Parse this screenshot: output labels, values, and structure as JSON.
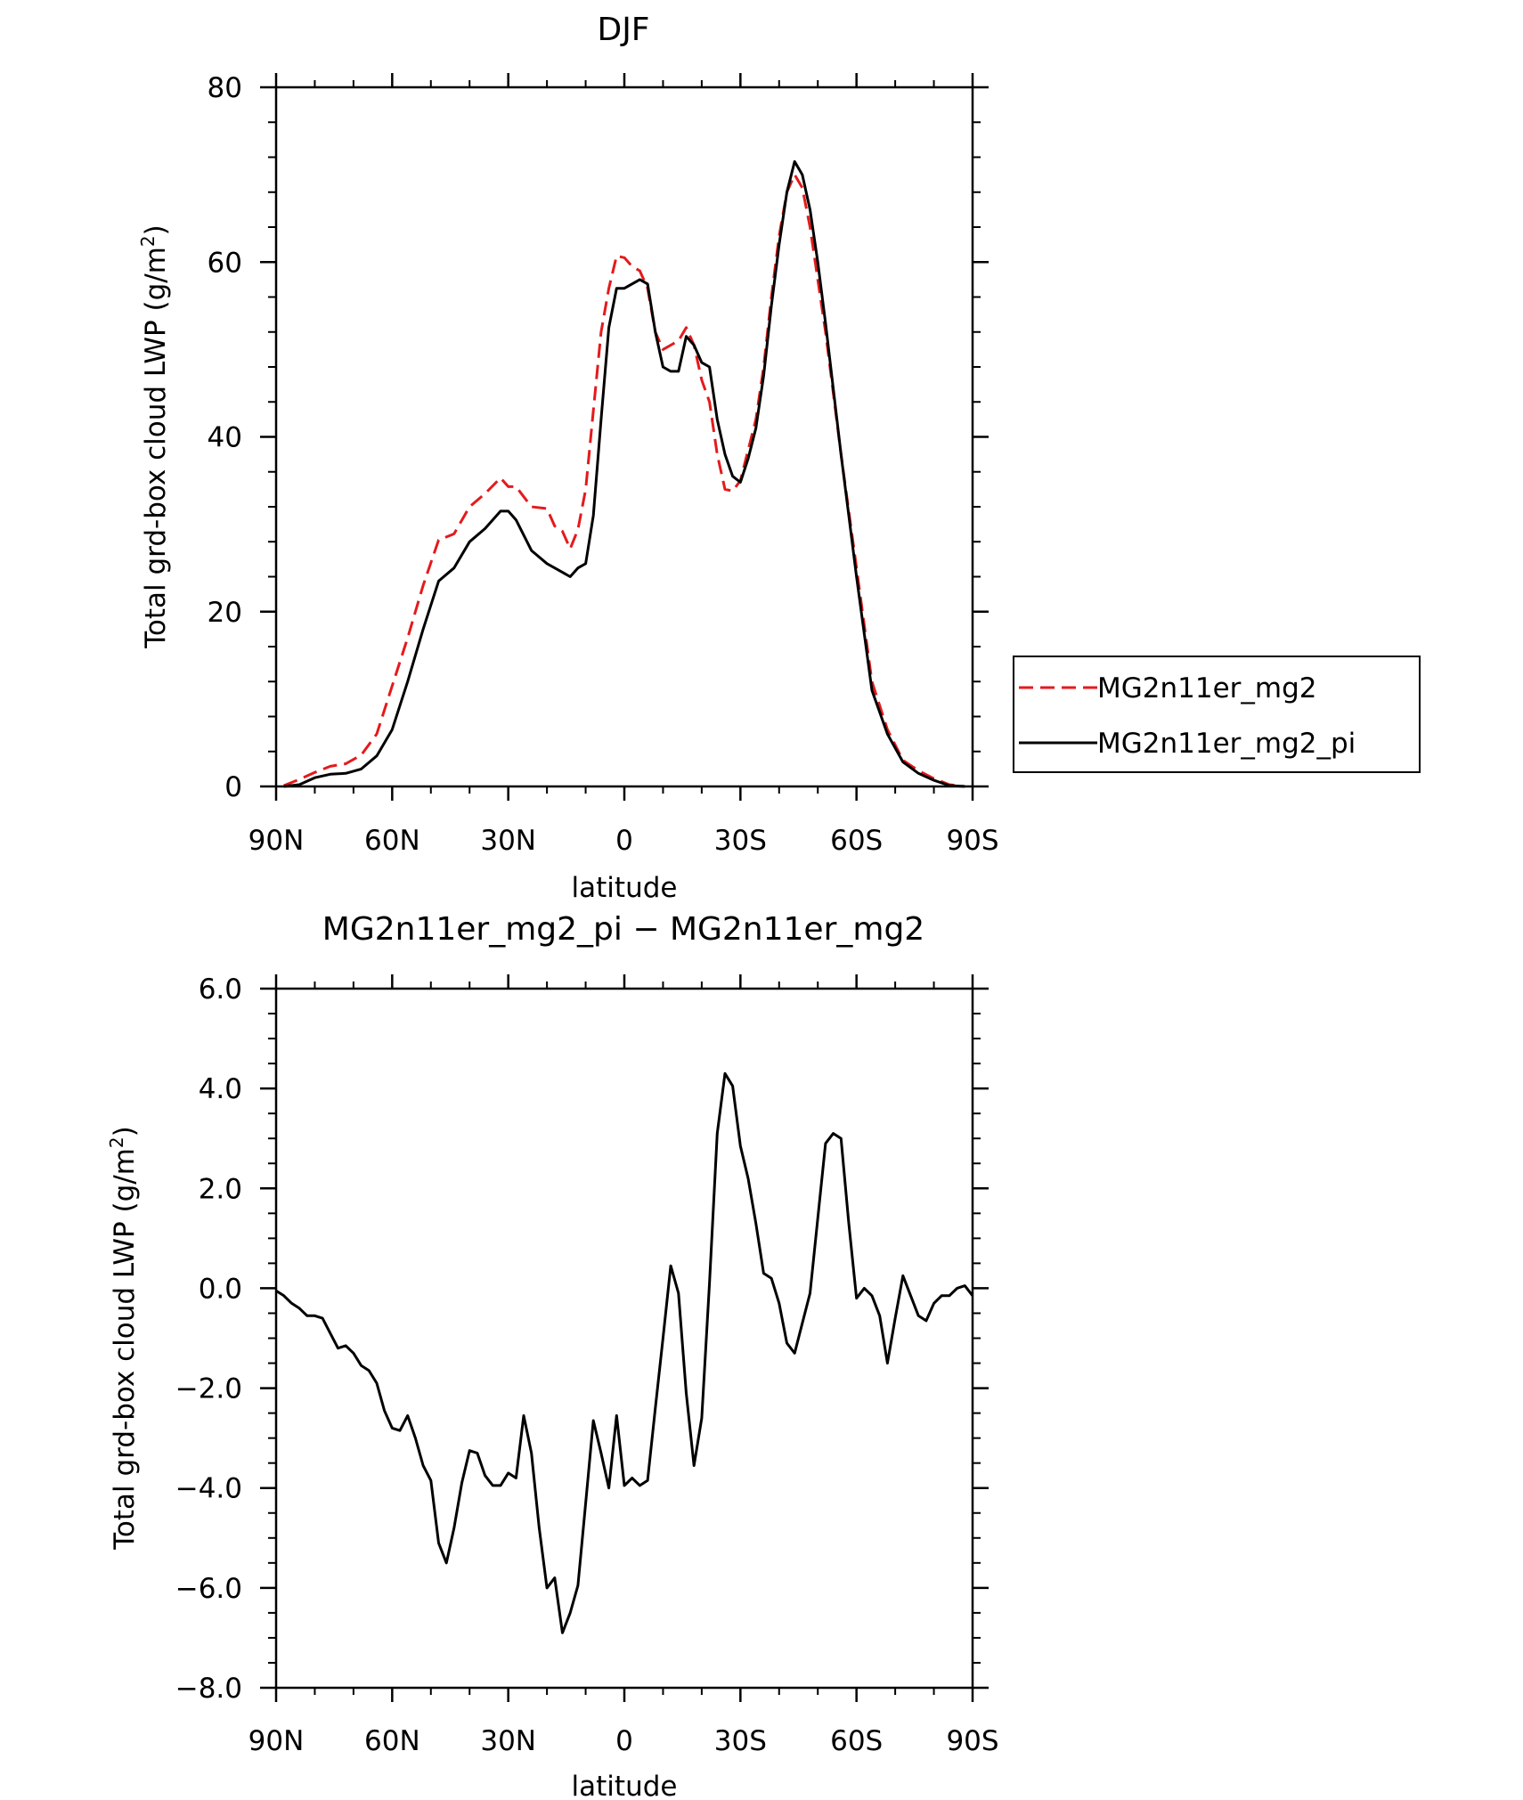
{
  "chart_data": [
    {
      "type": "line",
      "title": "DJF",
      "xlabel": "latitude",
      "ylabel": "Total grd-box cloud LWP (g/m²)",
      "ylabel_main": "Total grd-box cloud LWP (g/m",
      "ylabel_sup": "2",
      "ylabel_end": ")",
      "x_ticks": [
        "90N",
        "60N",
        "30N",
        "0",
        "30S",
        "60S",
        "90S"
      ],
      "x_tick_values": [
        -90,
        -60,
        -30,
        0,
        30,
        60,
        90
      ],
      "xlim": [
        -90,
        90
      ],
      "ylim": [
        0,
        80
      ],
      "y_ticks": [
        "0",
        "20",
        "40",
        "60",
        "80"
      ],
      "y_tick_values": [
        0,
        20,
        40,
        60,
        80
      ],
      "grid": false,
      "legend_position": "right",
      "x": [
        -88,
        -84,
        -80,
        -76,
        -72,
        -68,
        -64,
        -60,
        -56,
        -52,
        -48,
        -44,
        -40,
        -36,
        -32,
        -30,
        -28,
        -24,
        -20,
        -18,
        -16,
        -14,
        -12,
        -10,
        -8,
        -6,
        -4,
        -2,
        0,
        2,
        4,
        6,
        8,
        10,
        12,
        14,
        16,
        18,
        20,
        22,
        24,
        26,
        28,
        30,
        32,
        34,
        36,
        38,
        40,
        42,
        44,
        46,
        48,
        50,
        52,
        56,
        60,
        64,
        68,
        72,
        76,
        80,
        84,
        88
      ],
      "series": [
        {
          "name": "MG2n11er_mg2",
          "color": "#e41a1c",
          "dash": "dashed",
          "values": [
            0.1,
            0.8,
            1.6,
            2.3,
            2.6,
            3.6,
            6.0,
            11.5,
            17.0,
            23.0,
            28.2,
            28.9,
            32.0,
            33.5,
            35.3,
            34.3,
            34.3,
            32.0,
            31.8,
            29.8,
            29.2,
            27.2,
            29.4,
            34.0,
            43.0,
            52.0,
            57.0,
            60.7,
            60.5,
            59.5,
            59.0,
            57.0,
            52.0,
            50.0,
            50.5,
            51.0,
            52.5,
            50.5,
            46.5,
            44.0,
            38.0,
            34.0,
            33.8,
            35.0,
            38.5,
            42.0,
            48.0,
            56.0,
            63.0,
            68.0,
            70.0,
            68.5,
            64.0,
            58.0,
            52.0,
            38.0,
            25.0,
            12.0,
            6.5,
            3.0,
            1.8,
            0.9,
            0.2,
            0.0
          ]
        },
        {
          "name": "MG2n11er_mg2_pi",
          "color": "#000000",
          "dash": "solid",
          "values": [
            0.0,
            0.2,
            1.0,
            1.4,
            1.5,
            2.0,
            3.5,
            6.5,
            12.0,
            18.0,
            23.5,
            25.0,
            28.0,
            29.5,
            31.5,
            31.5,
            30.5,
            27.0,
            25.5,
            25.0,
            24.5,
            24.0,
            25.0,
            25.5,
            31.0,
            42.0,
            52.5,
            57.0,
            57.0,
            57.5,
            58.0,
            57.5,
            52.0,
            48.0,
            47.5,
            47.5,
            51.5,
            50.5,
            48.5,
            48.0,
            42.0,
            38.0,
            35.5,
            34.8,
            37.5,
            41.0,
            47.0,
            55.0,
            62.0,
            68.0,
            71.5,
            70.0,
            66.0,
            60.0,
            53.0,
            38.0,
            24.0,
            11.0,
            6.0,
            2.8,
            1.5,
            0.7,
            0.1,
            0.0
          ]
        }
      ]
    },
    {
      "type": "line",
      "title": "MG2n11er_mg2_pi − MG2n11er_mg2",
      "xlabel": "latitude",
      "ylabel": "Total grd-box cloud LWP (g/m²)",
      "ylabel_main": "Total grd-box cloud LWP (g/m",
      "ylabel_sup": "2",
      "ylabel_end": ")",
      "x_ticks": [
        "90N",
        "60N",
        "30N",
        "0",
        "30S",
        "60S",
        "90S"
      ],
      "x_tick_values": [
        -90,
        -60,
        -30,
        0,
        30,
        60,
        90
      ],
      "xlim": [
        -90,
        90
      ],
      "ylim": [
        -8,
        6
      ],
      "y_ticks": [
        "−8.0",
        "−6.0",
        "−4.0",
        "−2.0",
        "0.0",
        "2.0",
        "4.0",
        "6.0"
      ],
      "y_tick_values": [
        -8,
        -6,
        -4,
        -2,
        0,
        2,
        4,
        6
      ],
      "grid": false,
      "series": [
        {
          "name": "",
          "color": "#000000",
          "dash": "solid",
          "x": [
            -90,
            -88,
            -86,
            -84,
            -82,
            -80,
            -78,
            -76,
            -74,
            -72,
            -70,
            -68,
            -66,
            -64,
            -62,
            -60,
            -58,
            -56,
            -54,
            -52,
            -50,
            -48,
            -46,
            -44,
            -42,
            -40,
            -38,
            -36,
            -34,
            -32,
            -30,
            -28,
            -26,
            -24,
            -22,
            -20,
            -18,
            -16,
            -14,
            -12,
            -10,
            -8,
            -6,
            -4,
            -2,
            0,
            2,
            4,
            6,
            8,
            10,
            12,
            14,
            16,
            18,
            20,
            22,
            24,
            26,
            28,
            30,
            32,
            34,
            36,
            38,
            40,
            42,
            44,
            46,
            48,
            50,
            52,
            54,
            56,
            58,
            60,
            62,
            64,
            66,
            68,
            70,
            72,
            74,
            76,
            78,
            80,
            82,
            84,
            86,
            88,
            90
          ],
          "values": [
            -0.05,
            -0.15,
            -0.3,
            -0.4,
            -0.55,
            -0.55,
            -0.6,
            -0.9,
            -1.2,
            -1.15,
            -1.3,
            -1.55,
            -1.65,
            -1.9,
            -2.45,
            -2.8,
            -2.85,
            -2.55,
            -3.0,
            -3.55,
            -3.85,
            -5.1,
            -5.5,
            -4.8,
            -3.9,
            -3.25,
            -3.3,
            -3.75,
            -3.95,
            -3.95,
            -3.7,
            -3.8,
            -2.55,
            -3.3,
            -4.8,
            -6.0,
            -5.8,
            -6.9,
            -6.5,
            -5.95,
            -4.3,
            -2.65,
            -3.3,
            -4.0,
            -2.55,
            -3.95,
            -3.8,
            -3.95,
            -3.85,
            -2.4,
            -1.0,
            0.45,
            -0.1,
            -2.1,
            -3.55,
            -2.6,
            0.1,
            3.1,
            4.3,
            4.05,
            2.85,
            2.2,
            1.3,
            0.3,
            0.2,
            -0.3,
            -1.1,
            -1.3,
            -0.7,
            -0.1,
            1.4,
            2.9,
            3.1,
            3.0,
            1.3,
            -0.2,
            0.0,
            -0.15,
            -0.55,
            -1.5,
            -0.6,
            0.25,
            -0.15,
            -0.55,
            -0.65,
            -0.3,
            -0.15,
            -0.15,
            0.0,
            0.05,
            -0.15
          ]
        }
      ]
    }
  ]
}
